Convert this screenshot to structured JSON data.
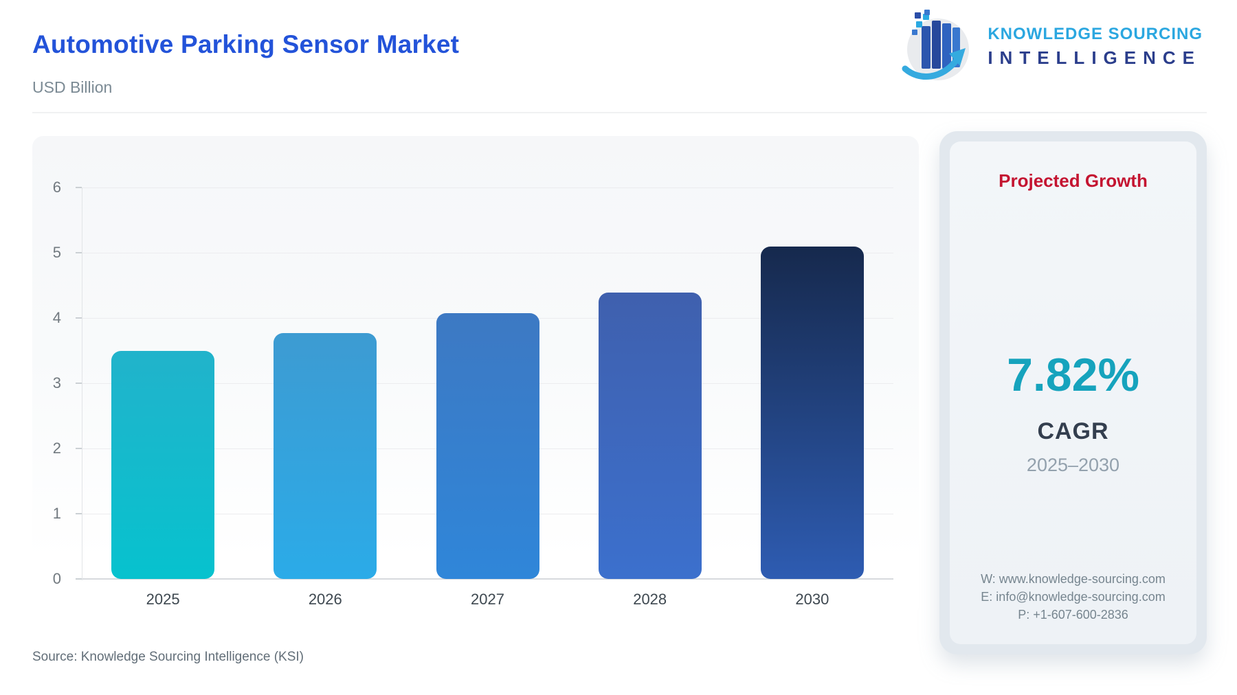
{
  "header": {
    "title": "Automotive Parking Sensor Market",
    "subtitle": "USD Billion",
    "logo": {
      "line1": "KNOWLEDGE SOURCING",
      "line2": "INTELLIGENCE"
    }
  },
  "chart_data": {
    "type": "bar",
    "title": "Automotive Parking Sensor Market",
    "ylabel": "USD Billion",
    "xlabel": "",
    "categories": [
      "2025",
      "2026",
      "2027",
      "2028",
      "2030"
    ],
    "values": [
      3.5,
      3.77,
      4.07,
      4.39,
      5.1
    ],
    "ylim": [
      0,
      6
    ],
    "yticks": [
      0,
      1,
      2,
      3,
      4,
      5,
      6
    ],
    "grid": true,
    "legend": "none",
    "bar_colors": [
      {
        "top": "#21b3cb",
        "bottom": "#07c2ce"
      },
      {
        "top": "#3d9bd2",
        "bottom": "#2babe8"
      },
      {
        "top": "#3d79c3",
        "bottom": "#2f86d9"
      },
      {
        "top": "#3f60ae",
        "bottom": "#3c70cd"
      },
      {
        "top": "#16294d",
        "bottom": "#2e5cb2"
      }
    ]
  },
  "growth_card": {
    "heading": "Projected Growth",
    "cagr_value": "7.82%",
    "cagr_label": "CAGR",
    "period": "2025–2030",
    "contact": {
      "website": "W: www.knowledge-sourcing.com",
      "email": "E: info@knowledge-sourcing.com",
      "phone": "P: +1-607-600-2836"
    }
  },
  "footer": {
    "source": "Source: Knowledge Sourcing Intelligence (KSI)"
  },
  "colors": {
    "title_blue": "#2353d9",
    "heading_red": "#c41431",
    "cagr_teal": "#16a3bd",
    "logo_light_blue": "#2ba7e0",
    "logo_dark_blue": "#2b3e8c"
  }
}
